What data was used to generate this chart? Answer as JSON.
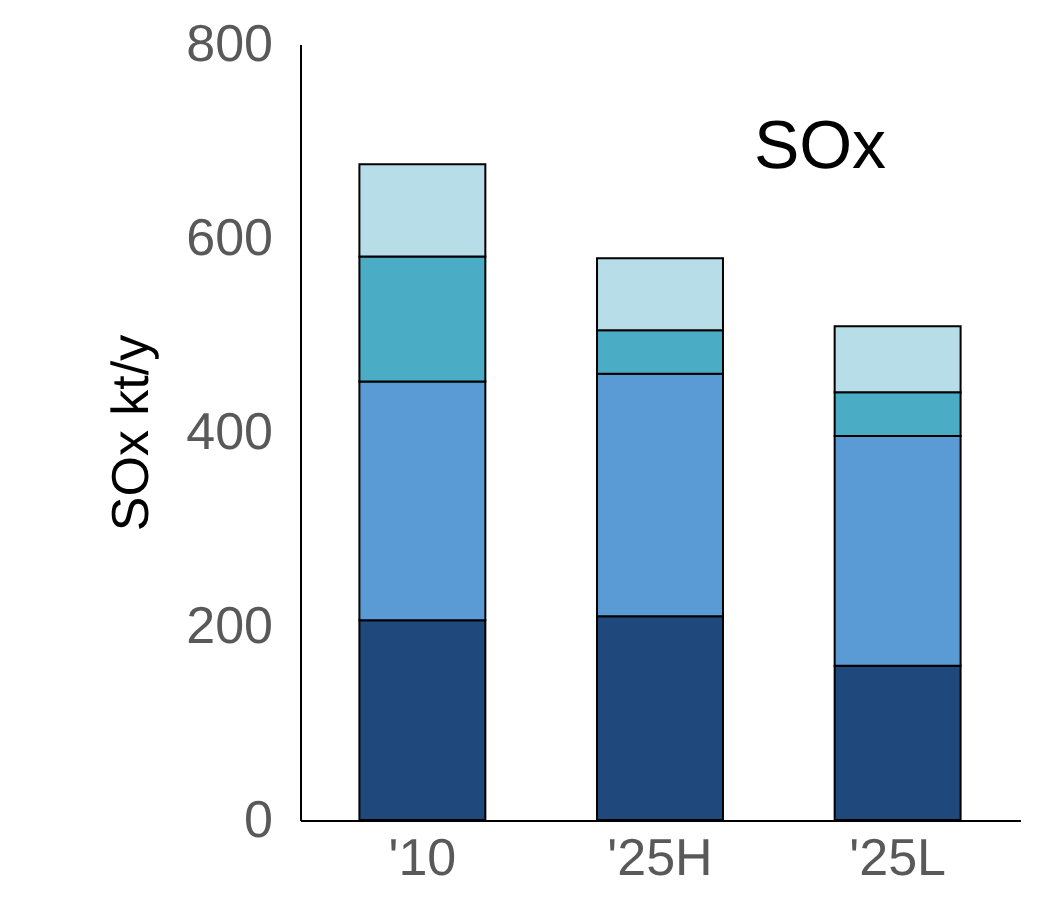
{
  "chart_data": {
    "type": "bar",
    "stacked": true,
    "ylabel": "SOx kt/y",
    "annotations": [
      "SOx"
    ],
    "categories": [
      "'10",
      "'25H",
      "'25L"
    ],
    "series": [
      {
        "color": "#1f497d",
        "values": [
          206,
          210,
          159
        ]
      },
      {
        "color": "#5b9bd5",
        "values": [
          246,
          250,
          237
        ]
      },
      {
        "color": "#4bacc6",
        "values": [
          129,
          45,
          45
        ]
      },
      {
        "color": "#b7dee8",
        "values": [
          95,
          74,
          68
        ]
      }
    ],
    "ylim": [
      0,
      800
    ],
    "yticks": [
      0,
      200,
      400,
      600,
      800
    ],
    "grid": false,
    "legend": false
  }
}
